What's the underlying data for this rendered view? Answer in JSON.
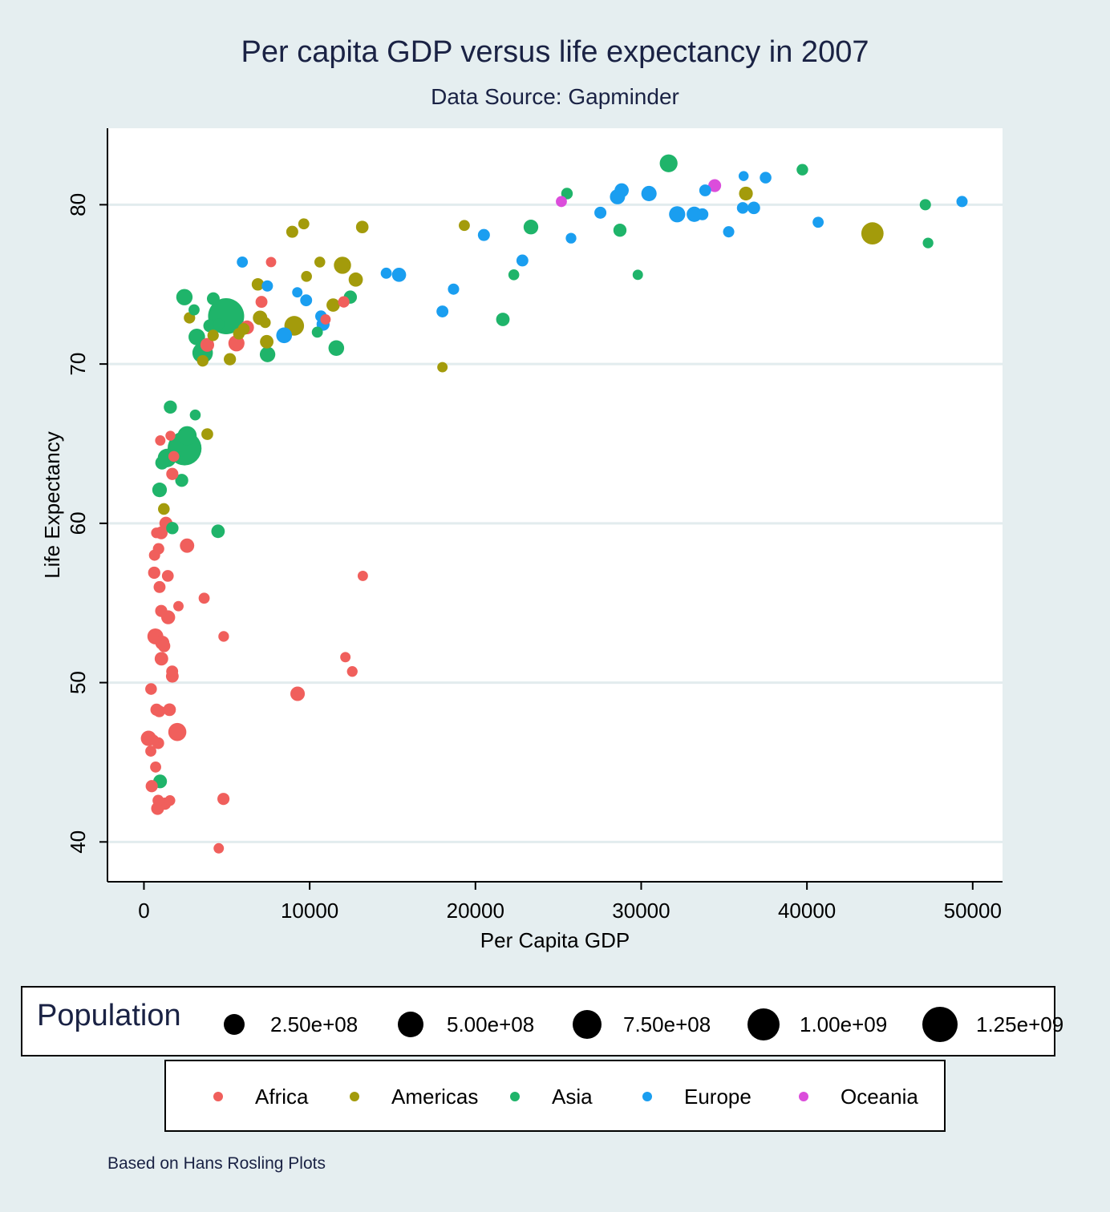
{
  "chart_data": {
    "type": "scatter",
    "title": "Per capita GDP versus life expectancy in 2007",
    "subtitle": "Data Source: Gapminder",
    "xlabel": "Per Capita GDP",
    "ylabel": "Life Expectancy",
    "xlim": [
      -2200,
      51800
    ],
    "ylim": [
      37.5,
      84.8
    ],
    "xticks": [
      0,
      10000,
      20000,
      30000,
      40000,
      50000
    ],
    "xtick_labels": [
      "0",
      "10000",
      "20000",
      "30000",
      "40000",
      "50000"
    ],
    "yticks": [
      40,
      50,
      60,
      70,
      80
    ],
    "ytick_labels": [
      "40",
      "50",
      "60",
      "70",
      "80"
    ],
    "grid": "horizontal",
    "colors": {
      "Africa": "#f05f5c",
      "Americas": "#a39b0b",
      "Asia": "#1fb46a",
      "Europe": "#1a9ef0",
      "Oceania": "#db4ddb"
    },
    "size_legend": {
      "title": "Population",
      "values": [
        250000000,
        500000000,
        750000000,
        1000000000,
        1250000000
      ],
      "labels": [
        "2.50e+08",
        "5.00e+08",
        "7.50e+08",
        "1.00e+09",
        "1.25e+09"
      ]
    },
    "color_legend": [
      "Africa",
      "Americas",
      "Asia",
      "Europe",
      "Oceania"
    ],
    "series": [
      {
        "name": "Africa",
        "points": [
          [
            6223,
            72.3,
            33
          ],
          [
            4797,
            42.7,
            12
          ],
          [
            1441,
            56.7,
            9
          ],
          [
            12570,
            50.7,
            2
          ],
          [
            1217,
            52.3,
            14
          ],
          [
            430,
            49.6,
            8
          ],
          [
            1713,
            50.4,
            18
          ],
          [
            706,
            44.7,
            4
          ],
          [
            1704,
            50.7,
            10
          ],
          [
            986,
            65.2,
            1
          ],
          [
            278,
            46.5,
            64
          ],
          [
            3633,
            55.3,
            4
          ],
          [
            1544,
            48.3,
            18
          ],
          [
            2082,
            54.8,
            1
          ],
          [
            5581,
            71.3,
            80
          ],
          [
            12154,
            51.6,
            1
          ],
          [
            641,
            58.0,
            5
          ],
          [
            690,
            52.9,
            76
          ],
          [
            13206,
            56.7,
            1
          ],
          [
            753,
            59.4,
            2
          ],
          [
            1328,
            60.0,
            23
          ],
          [
            943,
            56.0,
            10
          ],
          [
            579,
            46.4,
            2
          ],
          [
            1463,
            54.1,
            35
          ],
          [
            1569,
            42.6,
            2
          ],
          [
            415,
            45.7,
            4
          ],
          [
            12057,
            73.9,
            6
          ],
          [
            1045,
            59.4,
            19
          ],
          [
            760,
            48.3,
            13
          ],
          [
            1042,
            54.5,
            12
          ],
          [
            1803,
            64.2,
            3
          ],
          [
            10957,
            72.8,
            1
          ],
          [
            3820,
            71.2,
            33
          ],
          [
            824,
            42.1,
            20
          ],
          [
            4811,
            52.9,
            2
          ],
          [
            620,
            56.9,
            13
          ],
          [
            2014,
            46.9,
            135
          ],
          [
            7670,
            76.4,
            1
          ],
          [
            863,
            46.2,
            9
          ],
          [
            1598,
            65.5,
            0.2
          ],
          [
            1712,
            63.1,
            12
          ],
          [
            862,
            42.6,
            6
          ],
          [
            926,
            48.2,
            9
          ],
          [
            9270,
            49.3,
            44
          ],
          [
            2602,
            58.6,
            42
          ],
          [
            4513,
            39.6,
            1
          ],
          [
            1107,
            52.5,
            39
          ],
          [
            883,
            58.4,
            6
          ],
          [
            7093,
            73.9,
            10
          ],
          [
            1056,
            51.5,
            29
          ],
          [
            1271,
            42.4,
            12
          ],
          [
            470,
            43.5,
            12
          ]
        ]
      },
      {
        "name": "Americas",
        "points": [
          [
            12779,
            75.3,
            40
          ],
          [
            3822,
            65.6,
            9
          ],
          [
            9066,
            72.4,
            190
          ],
          [
            36319,
            80.7,
            33
          ],
          [
            13172,
            78.6,
            16
          ],
          [
            7007,
            72.9,
            44
          ],
          [
            9645,
            78.8,
            4
          ],
          [
            8948,
            78.3,
            11
          ],
          [
            6025,
            72.2,
            9
          ],
          [
            6873,
            75.0,
            14
          ],
          [
            5728,
            71.9,
            7
          ],
          [
            5186,
            70.3,
            13
          ],
          [
            1202,
            60.9,
            8
          ],
          [
            3548,
            70.2,
            7
          ],
          [
            7321,
            72.6,
            3
          ],
          [
            11978,
            76.2,
            108
          ],
          [
            2749,
            72.9,
            6
          ],
          [
            9809,
            75.5,
            3
          ],
          [
            4173,
            71.8,
            6
          ],
          [
            7409,
            71.4,
            29
          ],
          [
            19329,
            78.7,
            4
          ],
          [
            18009,
            69.8,
            1
          ],
          [
            36319,
            80.7,
            25
          ],
          [
            43952,
            78.2,
            301
          ],
          [
            10611,
            76.4,
            3
          ],
          [
            11416,
            73.7,
            26
          ]
        ]
      },
      {
        "name": "Asia",
        "points": [
          [
            975,
            43.8,
            32
          ],
          [
            29796,
            75.6,
            1
          ],
          [
            1391,
            64.1,
            150
          ],
          [
            1714,
            59.7,
            14
          ],
          [
            4959,
            73.0,
            1319
          ],
          [
            39725,
            82.2,
            7
          ],
          [
            2452,
            64.7,
            1110
          ],
          [
            3541,
            70.7,
            224
          ],
          [
            11606,
            71.0,
            69
          ],
          [
            4471,
            59.5,
            28
          ],
          [
            25523,
            80.7,
            7
          ],
          [
            31656,
            82.6,
            127
          ],
          [
            4519,
            72.5,
            6
          ],
          [
            1593,
            67.3,
            23
          ],
          [
            23348,
            78.6,
            49
          ],
          [
            47307,
            77.6,
            2
          ],
          [
            10461,
            72.0,
            4
          ],
          [
            12452,
            74.2,
            24
          ],
          [
            3096,
            66.8,
            3
          ],
          [
            944,
            62.1,
            47
          ],
          [
            1091,
            63.8,
            28
          ],
          [
            22316,
            75.6,
            3
          ],
          [
            2606,
            65.5,
            169
          ],
          [
            3190,
            71.7,
            91
          ],
          [
            21655,
            72.8,
            28
          ],
          [
            47143,
            80.0,
            5
          ],
          [
            3970,
            72.4,
            20
          ],
          [
            4185,
            74.1,
            19
          ],
          [
            28718,
            78.4,
            23
          ],
          [
            7458,
            70.6,
            65
          ],
          [
            2442,
            74.2,
            85
          ],
          [
            3025,
            73.4,
            4
          ],
          [
            2281,
            62.7,
            22
          ]
        ]
      },
      {
        "name": "Europe",
        "points": [
          [
            5937,
            76.4,
            4
          ],
          [
            36126,
            79.8,
            8
          ],
          [
            33693,
            79.4,
            10
          ],
          [
            7446,
            74.9,
            5
          ],
          [
            10681,
            73.0,
            7
          ],
          [
            14619,
            75.7,
            4
          ],
          [
            22833,
            76.5,
            10
          ],
          [
            35278,
            78.3,
            5
          ],
          [
            33207,
            79.3,
            5
          ],
          [
            30470,
            80.7,
            61
          ],
          [
            32170,
            79.4,
            82
          ],
          [
            27538,
            79.5,
            11
          ],
          [
            18009,
            73.3,
            10
          ],
          [
            36181,
            81.8,
            0.3
          ],
          [
            40676,
            78.9,
            4
          ],
          [
            28570,
            80.5,
            58
          ],
          [
            9254,
            74.5,
            1
          ],
          [
            36798,
            79.8,
            16
          ],
          [
            49357,
            80.2,
            5
          ],
          [
            15390,
            75.6,
            39
          ],
          [
            20510,
            78.1,
            11
          ],
          [
            10808,
            72.5,
            22
          ],
          [
            9787,
            74.0,
            10
          ],
          [
            18678,
            74.7,
            5
          ],
          [
            25768,
            77.9,
            2
          ],
          [
            28821,
            80.9,
            40
          ],
          [
            33860,
            80.9,
            9
          ],
          [
            37506,
            81.7,
            8
          ],
          [
            8458,
            71.8,
            71
          ],
          [
            33203,
            79.4,
            61
          ]
        ]
      },
      {
        "name": "Oceania",
        "points": [
          [
            34435,
            81.2,
            20
          ],
          [
            25185,
            80.2,
            4
          ]
        ]
      }
    ]
  },
  "caption": "Based on Hans Rosling Plots"
}
